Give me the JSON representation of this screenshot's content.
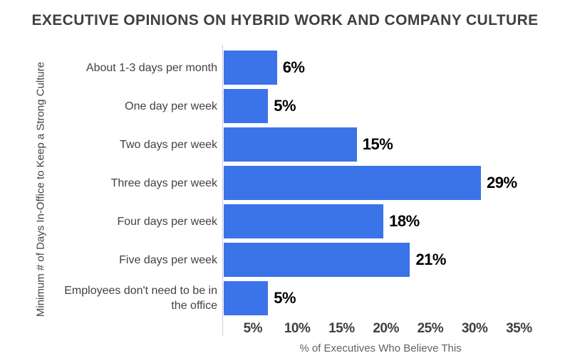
{
  "chart_data": {
    "type": "bar",
    "orientation": "horizontal",
    "title": "EXECUTIVE OPINIONS ON HYBRID WORK AND COMPANY CULTURE",
    "categories": [
      "About 1-3 days per month",
      "One day per week",
      "Two days per week",
      "Three days per week",
      "Four days per week",
      "Five days per week",
      "Employees don't need to be in the office"
    ],
    "values": [
      6,
      5,
      15,
      29,
      18,
      21,
      5
    ],
    "value_labels": [
      "6%",
      "5%",
      "15%",
      "29%",
      "18%",
      "21%",
      "5%"
    ],
    "xlabel": "% of Executives Who Believe This",
    "ylabel": "Minimum # of Days In-Office to Keep a Strong Culture",
    "xticks": [
      5,
      10,
      15,
      20,
      25,
      30,
      35
    ],
    "xtick_labels": [
      "5%",
      "10%",
      "15%",
      "20%",
      "25%",
      "30%",
      "35%"
    ],
    "xlim": [
      0,
      37
    ],
    "grid": false,
    "legend": false,
    "colors": {
      "bar": "#3b73e8",
      "value_label": "#000000",
      "category_label": "#424242",
      "tick_label": "#3f3f3f",
      "axis_title": "#5f6368",
      "title": "#3f3f3f",
      "axis_line": "#c8d0da",
      "background": "#ffffff"
    }
  }
}
